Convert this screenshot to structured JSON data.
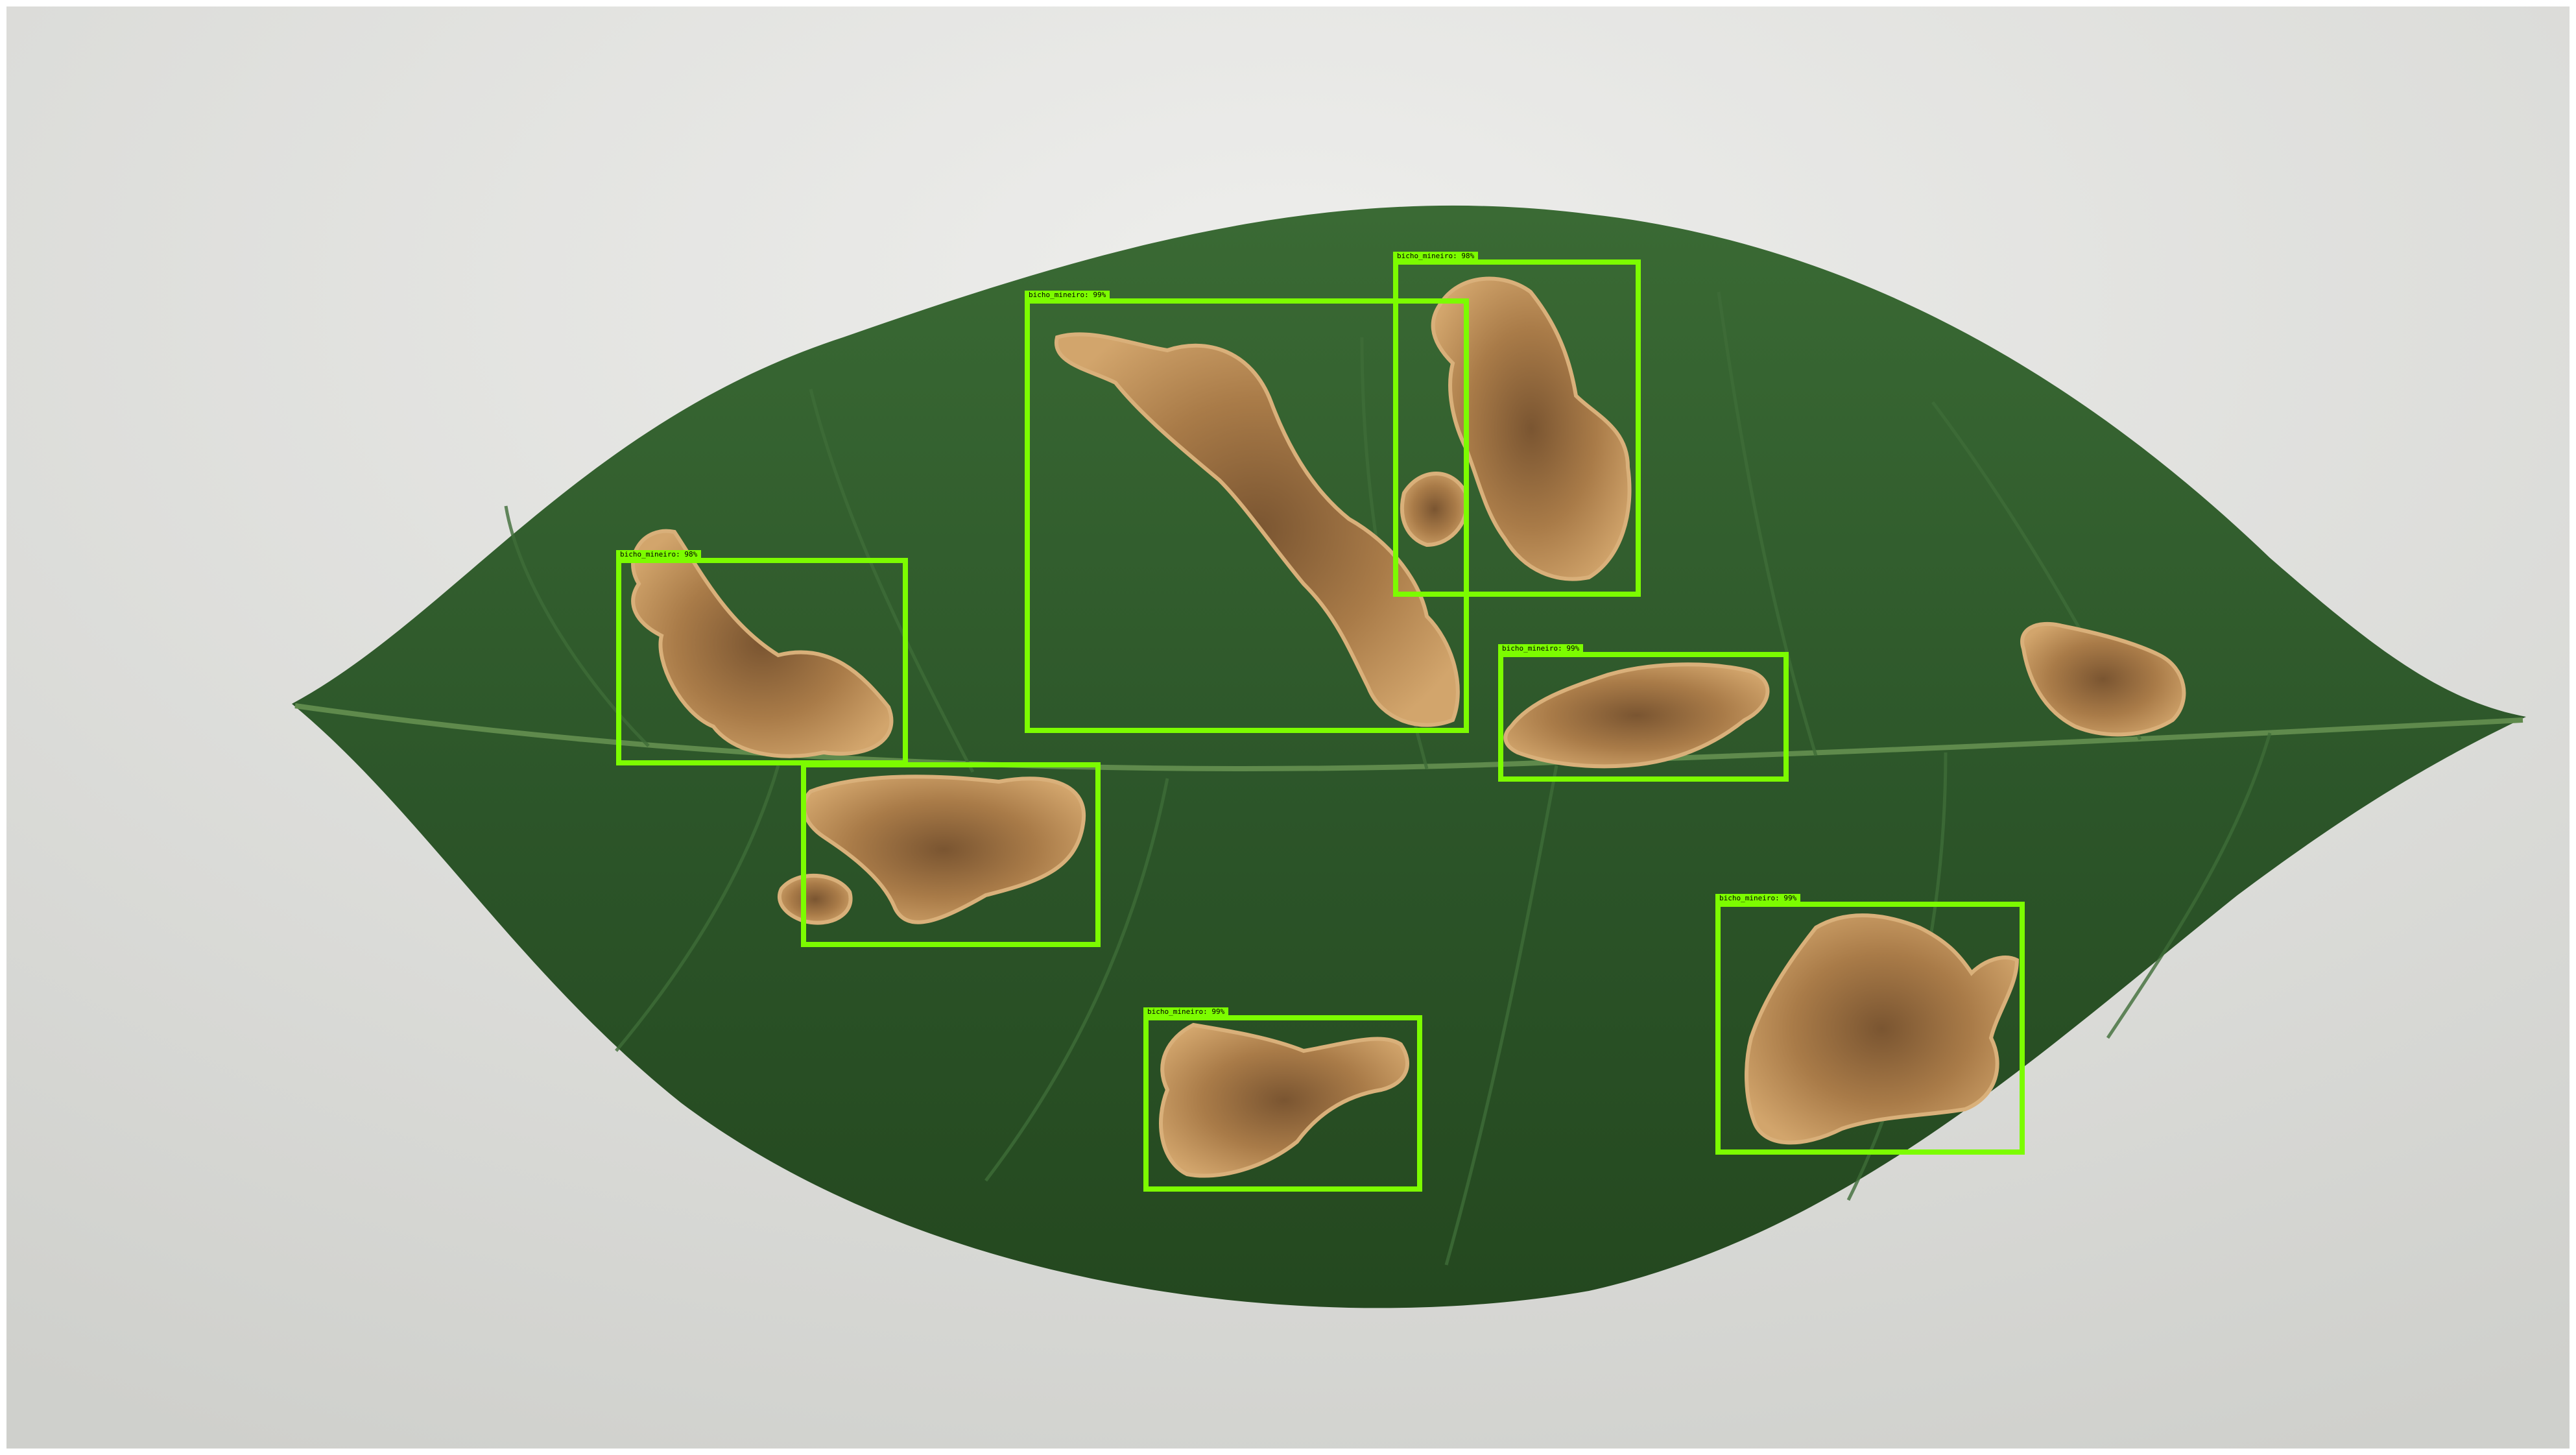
{
  "colors": {
    "background": "#dcdcda",
    "leaf": "#2f5a2c",
    "lesion": "#c9985e",
    "lesion_core": "#6b4a2c",
    "box": "#7CFC00"
  },
  "detections": [
    {
      "label": "bicho_mineiro: 98%"
    },
    {
      "label": "bicho_mineiro: 99%"
    },
    {
      "label": "bicho_mineiro: 98%"
    },
    {
      "label": "bicho_mineiro: 99%"
    },
    {
      "label": ""
    },
    {
      "label": "bicho_mineiro: 99%"
    },
    {
      "label": "bicho_mineiro: 99%"
    }
  ]
}
